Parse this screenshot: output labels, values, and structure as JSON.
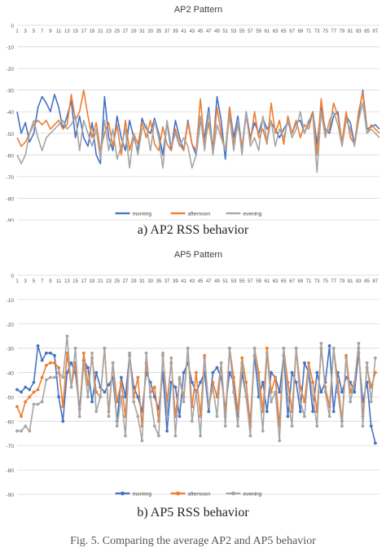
{
  "chart_data": [
    {
      "type": "line",
      "title": "AP2 Pattern",
      "caption": "a) AP2 RSS behavior",
      "xlabel": "",
      "ylabel": "",
      "ylim": [
        -90,
        0
      ],
      "yticks": [
        0,
        -10,
        -20,
        -30,
        -40,
        -50,
        -60,
        -70,
        -80,
        -90
      ],
      "xticks": [
        1,
        3,
        5,
        7,
        9,
        11,
        13,
        15,
        17,
        19,
        21,
        23,
        25,
        27,
        29,
        31,
        33,
        35,
        37,
        39,
        41,
        43,
        45,
        47,
        49,
        51,
        53,
        55,
        57,
        59,
        61,
        63,
        65,
        67,
        69,
        71,
        73,
        75,
        77,
        79,
        81,
        83,
        85,
        87
      ],
      "xrange": [
        1,
        88
      ],
      "grid": true,
      "legend": "bottom",
      "series": [
        {
          "name": "morning",
          "color": "#4472C4",
          "values": [
            -40,
            -50,
            -45,
            -54,
            -50,
            -38,
            -33,
            -36,
            -40,
            -32,
            -38,
            -48,
            -42,
            -35,
            -52,
            -42,
            -52,
            -56,
            -45,
            -60,
            -64,
            -33,
            -52,
            -58,
            -42,
            -52,
            -58,
            -44,
            -52,
            -58,
            -43,
            -48,
            -50,
            -43,
            -50,
            -60,
            -45,
            -58,
            -44,
            -52,
            -58,
            -44,
            -55,
            -60,
            -44,
            -52,
            -38,
            -58,
            -33,
            -44,
            -62,
            -38,
            -52,
            -42,
            -57,
            -40,
            -52,
            -45,
            -50,
            -43,
            -48,
            -45,
            -48,
            -52,
            -48,
            -45,
            -50,
            -45,
            -44,
            -50,
            -45,
            -40,
            -55,
            -38,
            -48,
            -50,
            -42,
            -40,
            -55,
            -42,
            -45,
            -55,
            -42,
            -30,
            -48,
            -47,
            -46,
            -48
          ]
        },
        {
          "name": "afternoon",
          "color": "#ED7D31",
          "values": [
            -52,
            -56,
            -54,
            -50,
            -46,
            -44,
            -46,
            -44,
            -48,
            -46,
            -44,
            -48,
            -46,
            -32,
            -44,
            -40,
            -30,
            -42,
            -52,
            -45,
            -58,
            -50,
            -45,
            -56,
            -46,
            -60,
            -44,
            -58,
            -50,
            -55,
            -45,
            -52,
            -44,
            -55,
            -58,
            -47,
            -55,
            -58,
            -48,
            -55,
            -58,
            -45,
            -55,
            -58,
            -34,
            -55,
            -45,
            -58,
            -38,
            -50,
            -58,
            -38,
            -55,
            -46,
            -56,
            -42,
            -54,
            -40,
            -52,
            -48,
            -55,
            -36,
            -50,
            -44,
            -55,
            -42,
            -50,
            -44,
            -52,
            -46,
            -48,
            -40,
            -60,
            -34,
            -50,
            -48,
            -36,
            -42,
            -54,
            -40,
            -52,
            -55,
            -40,
            -31,
            -50,
            -46,
            -48,
            -50
          ]
        },
        {
          "name": "evening",
          "color": "#A5A5A5",
          "values": [
            -60,
            -64,
            -60,
            -50,
            -44,
            -52,
            -58,
            -52,
            -50,
            -48,
            -46,
            -44,
            -48,
            -46,
            -42,
            -58,
            -44,
            -50,
            -56,
            -48,
            -62,
            -44,
            -58,
            -48,
            -62,
            -56,
            -48,
            -66,
            -50,
            -60,
            -48,
            -46,
            -58,
            -44,
            -52,
            -66,
            -44,
            -56,
            -50,
            -56,
            -52,
            -56,
            -66,
            -60,
            -42,
            -58,
            -40,
            -60,
            -46,
            -52,
            -58,
            -42,
            -58,
            -44,
            -60,
            -40,
            -56,
            -52,
            -58,
            -42,
            -54,
            -44,
            -56,
            -48,
            -52,
            -44,
            -52,
            -48,
            -40,
            -50,
            -44,
            -42,
            -68,
            -40,
            -52,
            -44,
            -40,
            -46,
            -56,
            -44,
            -48,
            -56,
            -44,
            -36,
            -50,
            -48,
            -50,
            -52
          ]
        }
      ]
    },
    {
      "type": "line",
      "title": "AP5 Pattern",
      "caption": "b) AP5 RSS behavior",
      "xlabel": "",
      "ylabel": "",
      "ylim": [
        -90,
        0
      ],
      "yticks": [
        0,
        -10,
        -20,
        -30,
        -40,
        -50,
        -60,
        -70,
        -80,
        -90
      ],
      "xticks": [
        1,
        3,
        5,
        7,
        9,
        11,
        13,
        15,
        17,
        19,
        21,
        23,
        25,
        27,
        29,
        31,
        33,
        35,
        37,
        39,
        41,
        43,
        45,
        47,
        49,
        51,
        53,
        55,
        57,
        59,
        61,
        63,
        65,
        67,
        69,
        71,
        73,
        75,
        77,
        79,
        81,
        83,
        85,
        87
      ],
      "xrange": [
        1,
        88
      ],
      "grid": true,
      "legend": "bottom",
      "series": [
        {
          "name": "morning",
          "color": "#4472C4",
          "values": [
            -47,
            -48,
            -46,
            -47,
            -44,
            -29,
            -35,
            -32,
            -32,
            -33,
            -50,
            -60,
            -40,
            -36,
            -40,
            -55,
            -35,
            -38,
            -52,
            -40,
            -46,
            -48,
            -45,
            -42,
            -60,
            -42,
            -50,
            -33,
            -46,
            -50,
            -56,
            -40,
            -44,
            -50,
            -55,
            -40,
            -64,
            -44,
            -46,
            -58,
            -40,
            -36,
            -44,
            -48,
            -44,
            -40,
            -56,
            -40,
            -38,
            -42,
            -55,
            -40,
            -44,
            -58,
            -40,
            -50,
            -60,
            -33,
            -50,
            -44,
            -56,
            -40,
            -42,
            -48,
            -33,
            -58,
            -40,
            -44,
            -56,
            -36,
            -40,
            -56,
            -40,
            -48,
            -44,
            -29,
            -56,
            -40,
            -48,
            -42,
            -44,
            -48,
            -32,
            -52,
            -44,
            -62,
            -69
          ]
        },
        {
          "name": "afternoon",
          "color": "#ED7D31",
          "values": [
            -54,
            -58,
            -52,
            -50,
            -48,
            -47,
            -42,
            -37,
            -36,
            -36,
            -38,
            -54,
            -32,
            -46,
            -36,
            -58,
            -32,
            -45,
            -34,
            -48,
            -50,
            -30,
            -56,
            -36,
            -52,
            -44,
            -58,
            -33,
            -50,
            -42,
            -62,
            -36,
            -48,
            -46,
            -60,
            -33,
            -52,
            -36,
            -58,
            -43,
            -50,
            -30,
            -54,
            -40,
            -58,
            -33,
            -54,
            -44,
            -50,
            -36,
            -58,
            -30,
            -42,
            -56,
            -34,
            -44,
            -62,
            -30,
            -40,
            -56,
            -30,
            -48,
            -42,
            -62,
            -30,
            -44,
            -56,
            -30,
            -46,
            -52,
            -36,
            -44,
            -56,
            -30,
            -46,
            -54,
            -30,
            -44,
            -60,
            -33,
            -48,
            -44,
            -30,
            -58,
            -38,
            -46,
            -40
          ]
        },
        {
          "name": "evening",
          "color": "#A5A5A5",
          "values": [
            -64,
            -64,
            -62,
            -64,
            -53,
            -53,
            -52,
            -43,
            -42,
            -42,
            -40,
            -42,
            -25,
            -46,
            -30,
            -58,
            -36,
            -50,
            -32,
            -56,
            -50,
            -30,
            -58,
            -36,
            -62,
            -50,
            -66,
            -32,
            -52,
            -58,
            -68,
            -32,
            -50,
            -62,
            -66,
            -32,
            -58,
            -34,
            -66,
            -42,
            -52,
            -30,
            -60,
            -48,
            -66,
            -34,
            -54,
            -46,
            -58,
            -36,
            -62,
            -30,
            -48,
            -62,
            -36,
            -50,
            -66,
            -30,
            -44,
            -64,
            -32,
            -52,
            -48,
            -68,
            -30,
            -50,
            -62,
            -30,
            -52,
            -58,
            -38,
            -50,
            -62,
            -28,
            -48,
            -58,
            -30,
            -48,
            -62,
            -34,
            -52,
            -44,
            -28,
            -62,
            -36,
            -52,
            -34
          ]
        }
      ]
    }
  ],
  "figure_caption_partial": "Fig. 5. Comparing the average AP2 and AP5 behavior"
}
